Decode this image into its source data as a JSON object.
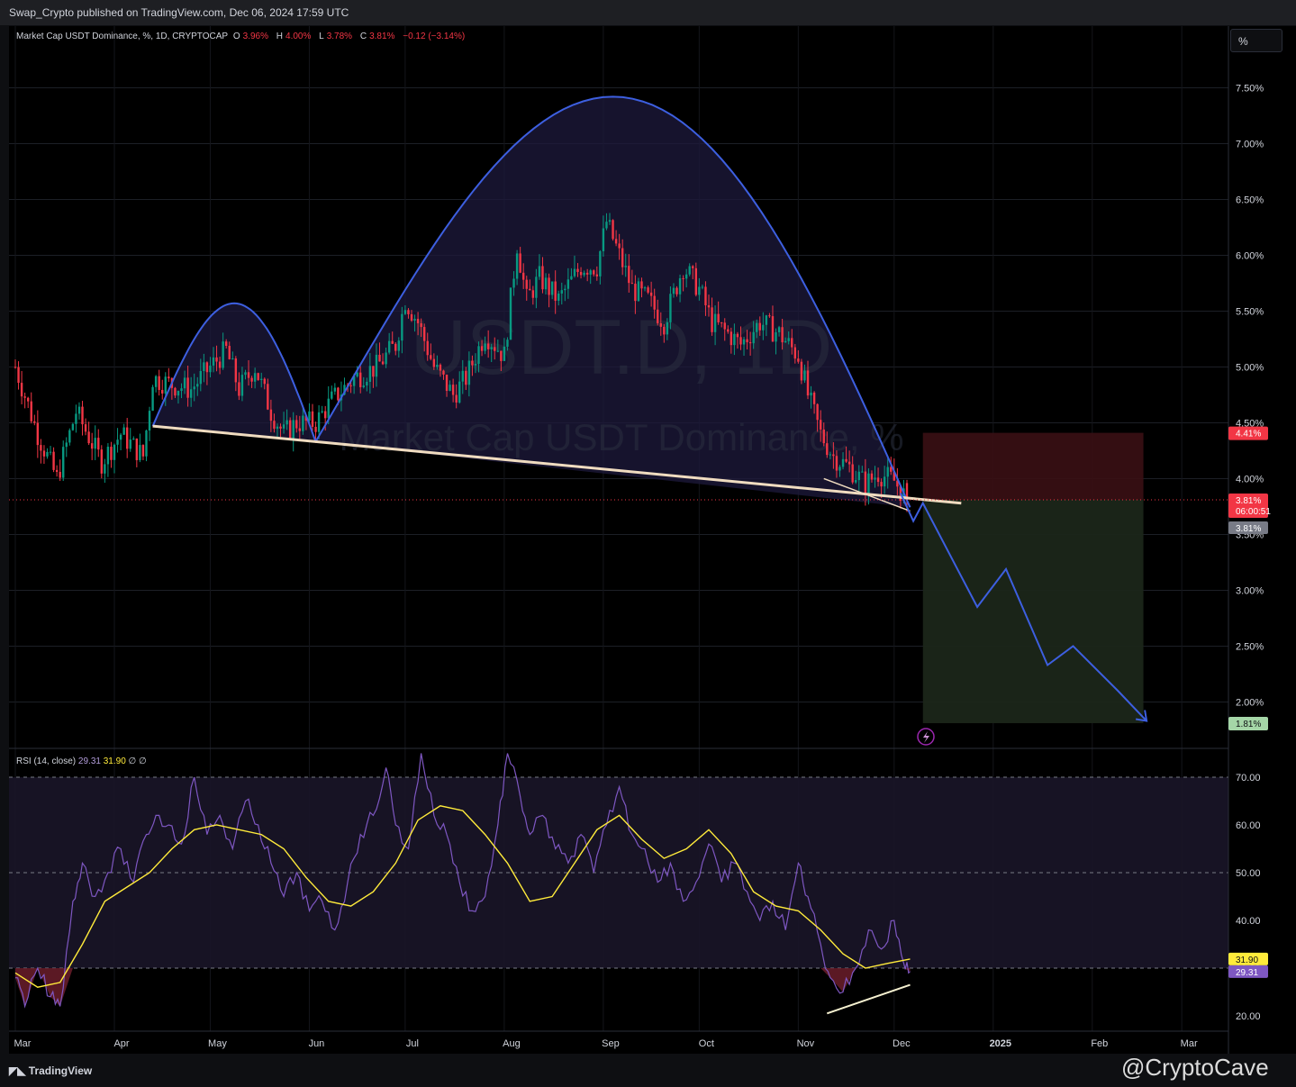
{
  "header": {
    "text": "Swap_Crypto published on TradingView.com, Dec 06, 2024 17:59 UTC"
  },
  "legend": {
    "title": "Market Cap USDT Dominance, %, 1D, CRYPTOCAP",
    "o_label": "O",
    "o_value": "3.96%",
    "h_label": "H",
    "h_value": "4.00%",
    "l_label": "L",
    "l_value": "3.78%",
    "c_label": "C",
    "c_value": "3.81%",
    "change": "−0.12 (−3.14%)"
  },
  "scale_button": "%",
  "watermark": {
    "symbol": "USDT.D, 1D",
    "name": "Market Cap USDT Dominance, %"
  },
  "rsi_legend": {
    "label": "RSI (14, close)",
    "rsi": "29.31",
    "ma": "31.90",
    "e1": "∅",
    "e2": "∅"
  },
  "colors": {
    "background": "#000000",
    "up": "#089981",
    "down": "#f23645",
    "arc": "#3d5fe0",
    "rsi": "#7e57c2",
    "rsi_ma": "#ffeb3b",
    "neckline": "#f0dcc0"
  },
  "chart_data": [
    {
      "type": "candlestick",
      "title": "Market Cap USDT Dominance, %, 1D, CRYPTOCAP",
      "ylabel": "%",
      "ylim": [
        1.6,
        7.95
      ],
      "yticks": [
        "7.50%",
        "7.00%",
        "6.50%",
        "6.00%",
        "5.50%",
        "5.00%",
        "4.50%",
        "4.00%",
        "3.50%",
        "3.00%",
        "2.50%",
        "2.00%"
      ],
      "xticks": [
        "Mar",
        "Apr",
        "May",
        "Jun",
        "Jul",
        "Aug",
        "Sep",
        "Oct",
        "Nov",
        "Dec",
        "2025",
        "Feb",
        "Mar"
      ],
      "close_path": {
        "x": [
          "2024-03-01",
          "2024-03-08",
          "2024-03-14",
          "2024-03-20",
          "2024-03-28",
          "2024-04-03",
          "2024-04-10",
          "2024-04-13",
          "2024-04-18",
          "2024-04-25",
          "2024-05-01",
          "2024-05-06",
          "2024-05-10",
          "2024-05-15",
          "2024-05-20",
          "2024-05-24",
          "2024-05-28",
          "2024-06-03",
          "2024-06-08",
          "2024-06-15",
          "2024-06-22",
          "2024-06-28",
          "2024-07-01",
          "2024-07-05",
          "2024-07-10",
          "2024-07-16",
          "2024-07-20",
          "2024-07-26",
          "2024-08-01",
          "2024-08-05",
          "2024-08-08",
          "2024-08-12",
          "2024-08-18",
          "2024-08-25",
          "2024-08-30",
          "2024-09-02",
          "2024-09-06",
          "2024-09-10",
          "2024-09-15",
          "2024-09-20",
          "2024-09-26",
          "2024-10-01",
          "2024-10-05",
          "2024-10-10",
          "2024-10-14",
          "2024-10-20",
          "2024-10-26",
          "2024-11-01",
          "2024-11-04",
          "2024-11-08",
          "2024-11-12",
          "2024-11-17",
          "2024-11-22",
          "2024-11-26",
          "2024-12-01",
          "2024-12-05"
        ],
        "y": [
          5.0,
          4.4,
          4.0,
          4.6,
          4.15,
          4.4,
          4.2,
          4.9,
          4.85,
          4.8,
          5.0,
          5.15,
          4.8,
          5.0,
          4.6,
          4.4,
          4.5,
          4.5,
          4.7,
          4.9,
          5.0,
          5.2,
          5.6,
          5.4,
          5.0,
          4.75,
          4.9,
          5.3,
          5.1,
          6.1,
          5.6,
          5.8,
          5.6,
          5.9,
          5.9,
          6.3,
          6.0,
          5.7,
          5.6,
          5.4,
          5.9,
          5.7,
          5.4,
          5.3,
          5.2,
          5.4,
          5.3,
          5.1,
          4.75,
          4.4,
          4.2,
          4.1,
          3.95,
          4.05,
          3.98,
          3.81
        ]
      },
      "last": {
        "open": 3.96,
        "high": 4.0,
        "low": 3.78,
        "close": 3.81
      },
      "price_labels": {
        "target_high": "4.41%",
        "current": "3.81%",
        "countdown": "06:00:51",
        "previous": "3.81%",
        "target_low": "1.81%"
      },
      "annotations": {
        "cup_arc_left": {
          "x0": "2024-04-13",
          "x1": "2024-06-03",
          "peak": 5.57
        },
        "cup_arc_right": {
          "x0": "2024-06-03",
          "x1": "2024-12-06",
          "peak": 7.42
        },
        "neckline": {
          "x0": "2024-04-13",
          "y0": 4.47,
          "x1": "2024-12-22",
          "y1": 3.78
        },
        "position_box": {
          "x0": "2024-12-10",
          "x1": "2025-02-17",
          "stop": 4.41,
          "entry": 3.81,
          "target": 1.81
        },
        "projection": {
          "x": [
            "2024-12-03",
            "2024-12-07",
            "2024-12-10",
            "2024-12-27",
            "2025-01-05",
            "2025-01-18",
            "2025-01-26",
            "2025-02-09",
            "2025-02-18"
          ],
          "y": [
            3.87,
            3.62,
            3.78,
            2.85,
            3.19,
            2.33,
            2.5,
            2.1,
            1.83
          ]
        }
      }
    },
    {
      "type": "line",
      "title": "RSI (14, close)",
      "ylim": [
        17,
        77
      ],
      "yticks": [
        "70.00",
        "60.00",
        "50.00",
        "40.00",
        "30.00",
        "20.00"
      ],
      "levels": [
        70,
        50,
        30
      ],
      "series": [
        {
          "name": "RSI",
          "color": "#7e57c2",
          "x": [
            "2024-03-01",
            "2024-03-04",
            "2024-03-08",
            "2024-03-12",
            "2024-03-15",
            "2024-03-19",
            "2024-03-22",
            "2024-03-26",
            "2024-03-30",
            "2024-04-03",
            "2024-04-07",
            "2024-04-11",
            "2024-04-14",
            "2024-04-18",
            "2024-04-22",
            "2024-04-26",
            "2024-04-30",
            "2024-05-04",
            "2024-05-08",
            "2024-05-12",
            "2024-05-16",
            "2024-05-20",
            "2024-05-24",
            "2024-05-28",
            "2024-06-01",
            "2024-06-05",
            "2024-06-09",
            "2024-06-13",
            "2024-06-17",
            "2024-06-21",
            "2024-06-25",
            "2024-06-28",
            "2024-07-02",
            "2024-07-06",
            "2024-07-10",
            "2024-07-14",
            "2024-07-18",
            "2024-07-22",
            "2024-07-26",
            "2024-07-30",
            "2024-08-02",
            "2024-08-06",
            "2024-08-09",
            "2024-08-13",
            "2024-08-17",
            "2024-08-21",
            "2024-08-25",
            "2024-08-29",
            "2024-09-02",
            "2024-09-06",
            "2024-09-10",
            "2024-09-14",
            "2024-09-18",
            "2024-09-22",
            "2024-09-26",
            "2024-09-30",
            "2024-10-04",
            "2024-10-08",
            "2024-10-12",
            "2024-10-16",
            "2024-10-20",
            "2024-10-24",
            "2024-10-28",
            "2024-11-01",
            "2024-11-04",
            "2024-11-08",
            "2024-11-11",
            "2024-11-15",
            "2024-11-19",
            "2024-11-23",
            "2024-11-27",
            "2024-12-01",
            "2024-12-04",
            "2024-12-06"
          ],
          "y": [
            28,
            22,
            30,
            24,
            22,
            44,
            52,
            45,
            50,
            55,
            48,
            58,
            62,
            60,
            56,
            70,
            58,
            62,
            55,
            65,
            60,
            52,
            45,
            50,
            42,
            44,
            38,
            48,
            58,
            62,
            72,
            60,
            55,
            75,
            62,
            58,
            48,
            42,
            45,
            60,
            75,
            66,
            58,
            62,
            55,
            52,
            58,
            50,
            60,
            68,
            58,
            55,
            48,
            52,
            44,
            48,
            56,
            48,
            52,
            46,
            40,
            44,
            38,
            52,
            45,
            35,
            28,
            25,
            30,
            38,
            34,
            40,
            31,
            29.31
          ]
        },
        {
          "name": "RSI-based MA",
          "color": "#ffeb3b",
          "x": [
            "2024-03-01",
            "2024-03-08",
            "2024-03-15",
            "2024-03-22",
            "2024-03-29",
            "2024-04-05",
            "2024-04-12",
            "2024-04-19",
            "2024-04-26",
            "2024-05-03",
            "2024-05-10",
            "2024-05-17",
            "2024-05-24",
            "2024-05-31",
            "2024-06-07",
            "2024-06-14",
            "2024-06-21",
            "2024-06-28",
            "2024-07-05",
            "2024-07-12",
            "2024-07-19",
            "2024-07-26",
            "2024-08-02",
            "2024-08-09",
            "2024-08-16",
            "2024-08-23",
            "2024-08-30",
            "2024-09-06",
            "2024-09-13",
            "2024-09-20",
            "2024-09-27",
            "2024-10-04",
            "2024-10-11",
            "2024-10-18",
            "2024-10-25",
            "2024-11-01",
            "2024-11-08",
            "2024-11-15",
            "2024-11-22",
            "2024-11-29",
            "2024-12-06"
          ],
          "y": [
            29,
            26,
            27,
            35,
            44,
            47,
            50,
            55,
            59,
            60,
            59,
            58,
            55,
            49,
            44,
            43,
            46,
            52,
            61,
            64,
            63,
            58,
            52,
            44,
            45,
            52,
            59,
            62,
            57,
            53,
            55,
            59,
            54,
            46,
            43,
            42,
            38,
            33,
            30,
            31,
            31.9
          ]
        }
      ],
      "current": {
        "rsi": "29.31",
        "ma": "31.90"
      }
    }
  ],
  "footer": {
    "brand": "TradingView",
    "watermark": "@CryptoCave"
  }
}
